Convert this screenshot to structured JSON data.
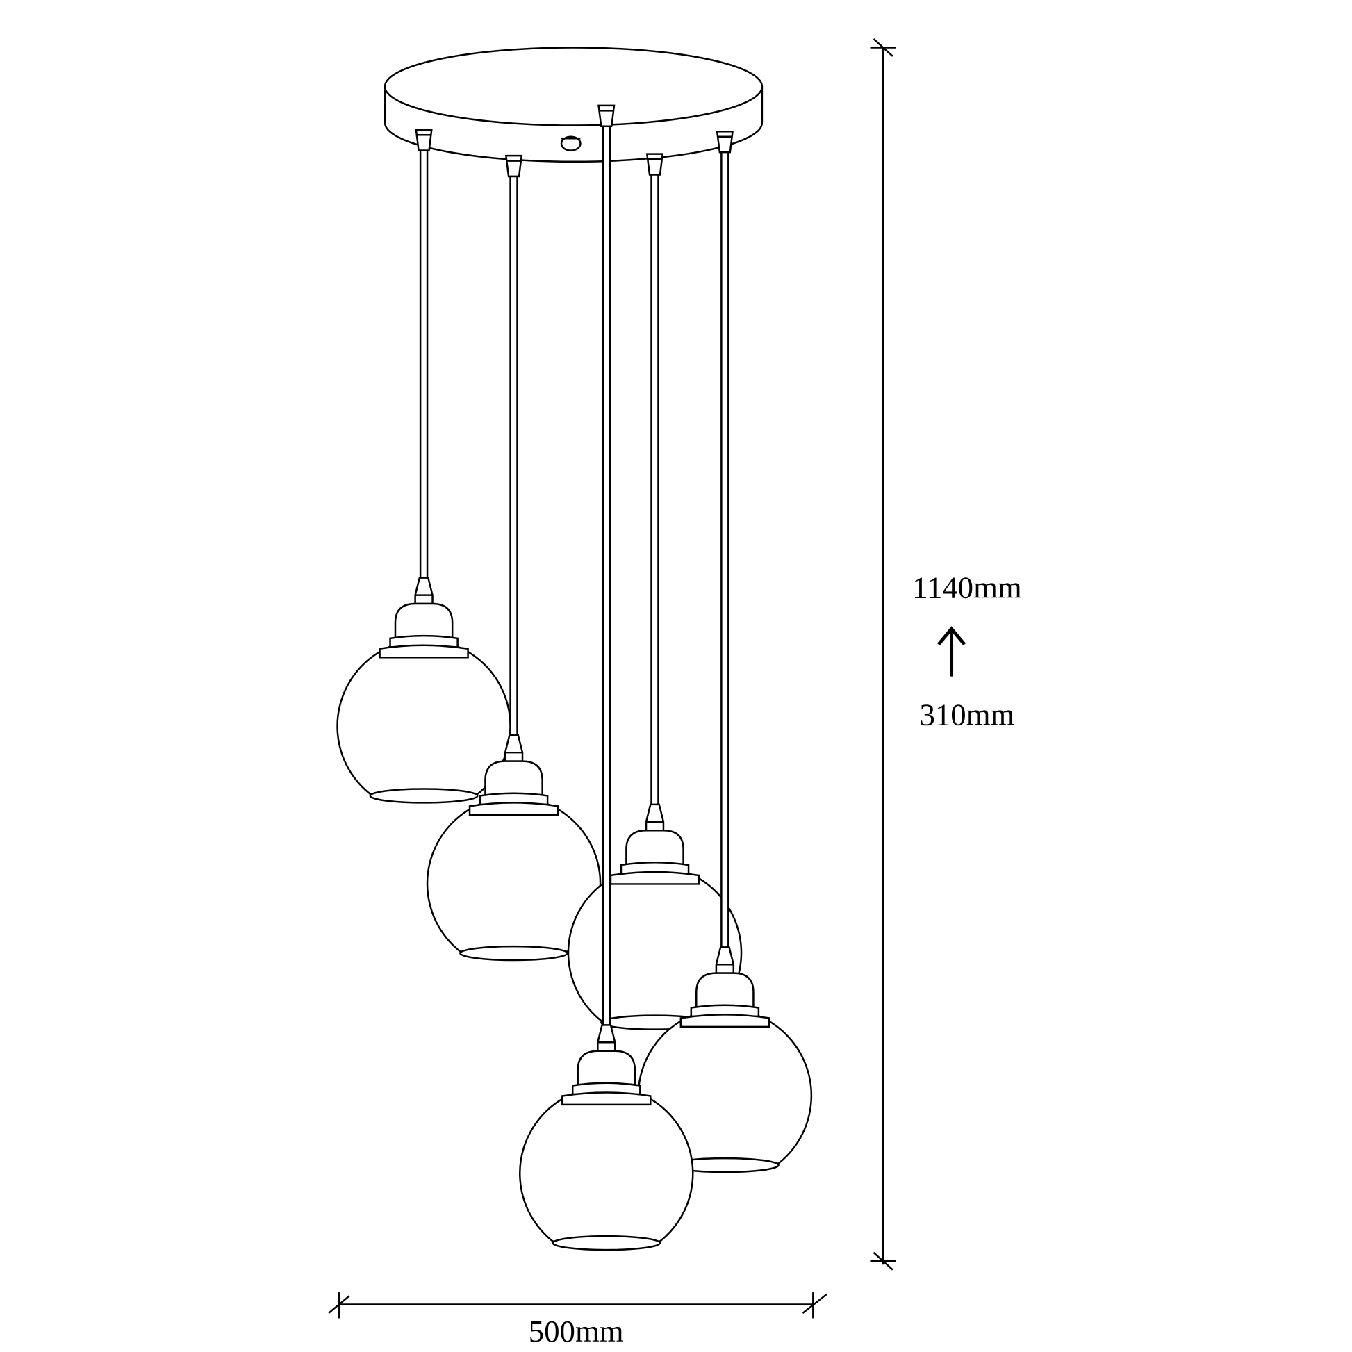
{
  "dimensions": {
    "height_label": "1140mm",
    "min_height_label": "310mm",
    "width_label": "500mm",
    "arrow_icon": "arrow-up-icon"
  },
  "drawing": {
    "line_color": "#000000",
    "background": "#ffffff",
    "pendant_count": 5
  }
}
